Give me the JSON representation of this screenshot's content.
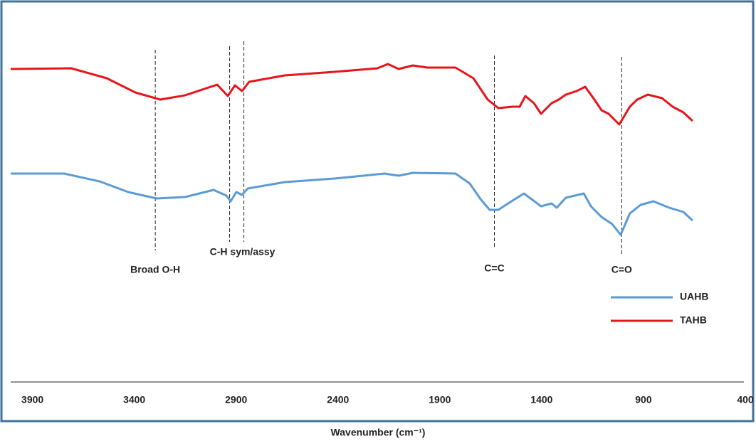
{
  "chart_data": {
    "type": "line",
    "xlabel": "Wavenumber (cm⁻¹)",
    "xlim": [
      4000,
      400
    ],
    "xticks": [
      3900,
      3400,
      2900,
      2400,
      1900,
      1400,
      900,
      400
    ],
    "ylim": [
      0,
      100
    ],
    "legend": "right",
    "series": [
      {
        "name": "UAHB",
        "color": "#5b9bd5",
        "x": [
          4000,
          3738,
          3563,
          3423,
          3283,
          3144,
          3004,
          2941,
          2920,
          2892,
          2864,
          2836,
          2654,
          2410,
          2165,
          2095,
          2025,
          1816,
          1746,
          1693,
          1648,
          1606,
          1536,
          1480,
          1396,
          1344,
          1319,
          1274,
          1186,
          1151,
          1099,
          1047,
          1005,
          960,
          907,
          844,
          767,
          697,
          652
        ],
        "values": [
          58.6,
          58.6,
          56.4,
          53.4,
          51.6,
          52,
          54,
          52.4,
          50.8,
          53.4,
          52.6,
          54.4,
          56.2,
          57.2,
          58.6,
          58,
          58.8,
          58.6,
          55.8,
          51.4,
          48.4,
          48.4,
          51,
          53,
          49.4,
          50.2,
          49,
          51.8,
          53,
          49.4,
          46.4,
          44.4,
          41.4,
          47.4,
          49.8,
          50.8,
          49,
          47.8,
          45.4
        ]
      },
      {
        "name": "TAHB",
        "color": "#e8141b",
        "x": [
          4000,
          3703,
          3528,
          3388,
          3266,
          3144,
          2986,
          2934,
          2899,
          2864,
          2829,
          2654,
          2410,
          2200,
          2148,
          2095,
          2025,
          1955,
          1816,
          1728,
          1658,
          1606,
          1536,
          1501,
          1473,
          1431,
          1396,
          1344,
          1309,
          1274,
          1221,
          1179,
          1134,
          1099,
          1064,
          1012,
          960,
          924,
          872,
          802,
          750,
          697,
          652
        ],
        "values": [
          88,
          88.2,
          85.4,
          81.4,
          79.4,
          80.6,
          83.6,
          80.4,
          83.4,
          81.8,
          84.4,
          86.2,
          87.2,
          88.2,
          89.4,
          88,
          89,
          88.4,
          88.4,
          85.4,
          79.4,
          77,
          77.4,
          77.4,
          80.4,
          78.4,
          75.4,
          78.4,
          79.4,
          80.8,
          81.8,
          83,
          79.4,
          76.4,
          75.4,
          72.4,
          77.4,
          79.4,
          80.8,
          79.8,
          77.4,
          75.8,
          73.4
        ]
      }
    ],
    "annotations": [
      {
        "text": "Broad O-H",
        "x": 3290
      },
      {
        "text": "C-H sym/assy",
        "x": 2925
      },
      {
        "x": 2855
      },
      {
        "text": "C=C",
        "x": 1625
      },
      {
        "text": "C=O",
        "x": 1000
      }
    ]
  }
}
